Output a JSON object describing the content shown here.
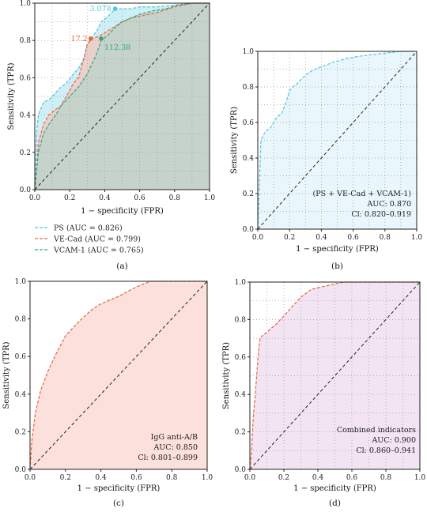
{
  "chart_data": [
    {
      "panel_label": "(a)",
      "type": "line",
      "xlabel": "1 − specificity (FPR)",
      "ylabel": "Sensitivity (TPR)",
      "xlim": [
        0,
        1
      ],
      "ylim": [
        0,
        1
      ],
      "xticks": [
        "0.0",
        "0.2",
        "0.4",
        "0.6",
        "0.8",
        "1.0"
      ],
      "yticks": [
        "0.0",
        "0.2",
        "0.4",
        "0.6",
        "0.8",
        "1.0"
      ],
      "grid": true,
      "legend_position": "below",
      "diagonal": true,
      "series": [
        {
          "name": "PS (AUC = 0.826)",
          "color": "#4cc6dc",
          "fill": "#bfe9f3",
          "x": [
            0,
            0.01,
            0.02,
            0.05,
            0.08,
            0.1,
            0.12,
            0.15,
            0.18,
            0.22,
            0.25,
            0.28,
            0.3,
            0.33,
            0.36,
            0.38,
            0.42,
            0.46,
            0.5,
            0.55,
            0.6,
            0.7,
            0.8,
            0.9,
            1.0
          ],
          "y": [
            0,
            0.3,
            0.4,
            0.47,
            0.48,
            0.5,
            0.52,
            0.55,
            0.57,
            0.62,
            0.65,
            0.7,
            0.78,
            0.82,
            0.86,
            0.9,
            0.93,
            0.97,
            0.97,
            0.97,
            0.98,
            0.98,
            0.99,
            1.0,
            1.0
          ]
        },
        {
          "name": "VE-Cad (AUC = 0.799)",
          "color": "#e8673f",
          "fill": "#f6c6bd",
          "x": [
            0,
            0.01,
            0.02,
            0.05,
            0.08,
            0.12,
            0.15,
            0.18,
            0.2,
            0.22,
            0.25,
            0.28,
            0.3,
            0.33,
            0.36,
            0.4,
            0.45,
            0.5,
            0.55,
            0.6,
            0.7,
            0.8,
            0.9,
            1.0
          ],
          "y": [
            0,
            0.1,
            0.25,
            0.35,
            0.4,
            0.43,
            0.45,
            0.5,
            0.53,
            0.57,
            0.6,
            0.7,
            0.78,
            0.81,
            0.82,
            0.84,
            0.87,
            0.9,
            0.92,
            0.93,
            0.95,
            0.98,
            1.0,
            1.0
          ]
        },
        {
          "name": "VCAM-1 (AUC = 0.765)",
          "color": "#2aa888",
          "fill": "#b8d4c9",
          "x": [
            0,
            0.02,
            0.05,
            0.08,
            0.12,
            0.15,
            0.2,
            0.25,
            0.3,
            0.35,
            0.38,
            0.42,
            0.46,
            0.5,
            0.55,
            0.6,
            0.68,
            0.75,
            0.82,
            0.9,
            1.0
          ],
          "y": [
            0,
            0.2,
            0.3,
            0.35,
            0.4,
            0.45,
            0.5,
            0.55,
            0.62,
            0.72,
            0.8,
            0.83,
            0.87,
            0.9,
            0.92,
            0.94,
            0.96,
            0.97,
            0.99,
            1.0,
            1.0
          ]
        }
      ],
      "annotations": [
        {
          "text": "3.078",
          "x": 0.46,
          "y": 0.97,
          "color": "#4cc6dc"
        },
        {
          "text": "17.2",
          "x": 0.32,
          "y": 0.81,
          "color": "#e8673f"
        },
        {
          "text": "112.38",
          "x": 0.38,
          "y": 0.81,
          "color": "#2aa888"
        }
      ]
    },
    {
      "panel_label": "(b)",
      "type": "line",
      "xlabel": "1 − specificity (FPR)",
      "ylabel": "Sensitivity (TPR)",
      "xlim": [
        0,
        1
      ],
      "ylim": [
        0,
        1
      ],
      "xticks": [
        "0.0",
        "0.2",
        "0.4",
        "0.6",
        "0.8",
        "1.0"
      ],
      "yticks": [
        "0.0",
        "0.2",
        "0.4",
        "0.6",
        "0.8",
        "1.0"
      ],
      "grid": true,
      "diagonal": true,
      "series": [
        {
          "name": "(PS + VE-Cad + VCAM-1)",
          "color": "#5bc3e0",
          "fill": "#e9f6fb",
          "x": [
            0,
            0.01,
            0.02,
            0.03,
            0.05,
            0.08,
            0.1,
            0.12,
            0.15,
            0.18,
            0.2,
            0.22,
            0.25,
            0.28,
            0.32,
            0.36,
            0.42,
            0.48,
            0.52,
            0.56,
            0.62,
            0.7,
            0.8,
            0.9,
            1.0
          ],
          "y": [
            0,
            0.25,
            0.5,
            0.52,
            0.55,
            0.57,
            0.6,
            0.63,
            0.65,
            0.72,
            0.78,
            0.8,
            0.82,
            0.85,
            0.88,
            0.9,
            0.92,
            0.94,
            0.95,
            0.96,
            0.97,
            0.98,
            0.99,
            1.0,
            1.0
          ]
        }
      ],
      "note_lines": [
        "(PS + VE-Cad + VCAM-1)",
        "AUC: 0.870",
        "Cl: 0.820–0.919"
      ]
    },
    {
      "panel_label": "(c)",
      "type": "line",
      "xlabel": "1 − specificity (FPR)",
      "ylabel": "Sensitivity (TPR)",
      "xlim": [
        0,
        1
      ],
      "ylim": [
        0,
        1
      ],
      "xticks": [
        "0.0",
        "0.2",
        "0.4",
        "0.6",
        "0.8",
        "1.0"
      ],
      "yticks": [
        "0.0",
        "0.2",
        "0.4",
        "0.6",
        "0.8",
        "1.0"
      ],
      "grid": false,
      "diagonal": true,
      "series": [
        {
          "name": "IgG anti-A/B",
          "color": "#e8673f",
          "fill": "#fbe0db",
          "x": [
            0,
            0.01,
            0.03,
            0.06,
            0.1,
            0.15,
            0.2,
            0.28,
            0.35,
            0.4,
            0.5,
            0.6,
            0.68,
            0.8,
            0.9,
            1.0
          ],
          "y": [
            0,
            0.15,
            0.3,
            0.42,
            0.52,
            0.62,
            0.71,
            0.79,
            0.85,
            0.88,
            0.92,
            0.97,
            1.0,
            1.0,
            1.0,
            1.0
          ]
        }
      ],
      "note_lines": [
        "IgG anti-A/B",
        "AUC: 0.850",
        "Cl: 0.801–0.899"
      ]
    },
    {
      "panel_label": "(d)",
      "type": "line",
      "xlabel": "1 − specificity (FPR)",
      "ylabel": "Sensitivity (TPR)",
      "xlim": [
        0,
        1
      ],
      "ylim": [
        0,
        1
      ],
      "xticks": [
        "0.0",
        "0.2",
        "0.4",
        "0.6",
        "0.8",
        "1.0"
      ],
      "yticks": [
        "0.0",
        "0.2",
        "0.4",
        "0.6",
        "0.8",
        "1.0"
      ],
      "grid": true,
      "diagonal": true,
      "series": [
        {
          "name": "Combined indicators",
          "color": "#e8673f",
          "fill": "#f2e4f2",
          "x": [
            0,
            0.01,
            0.02,
            0.03,
            0.04,
            0.05,
            0.06,
            0.08,
            0.1,
            0.12,
            0.15,
            0.18,
            0.2,
            0.22,
            0.25,
            0.28,
            0.3,
            0.33,
            0.36,
            0.4,
            0.45,
            0.5,
            0.55,
            0.6,
            0.7,
            0.8,
            0.9,
            1.0
          ],
          "y": [
            0,
            0.1,
            0.28,
            0.38,
            0.5,
            0.62,
            0.7,
            0.72,
            0.73,
            0.75,
            0.77,
            0.8,
            0.82,
            0.84,
            0.87,
            0.9,
            0.92,
            0.94,
            0.96,
            0.97,
            0.98,
            0.99,
            1.0,
            1.0,
            1.0,
            1.0,
            1.0,
            1.0
          ]
        }
      ],
      "note_lines": [
        "Combined indicators",
        "AUC: 0.900",
        "Cl: 0.860–0.941"
      ]
    }
  ]
}
